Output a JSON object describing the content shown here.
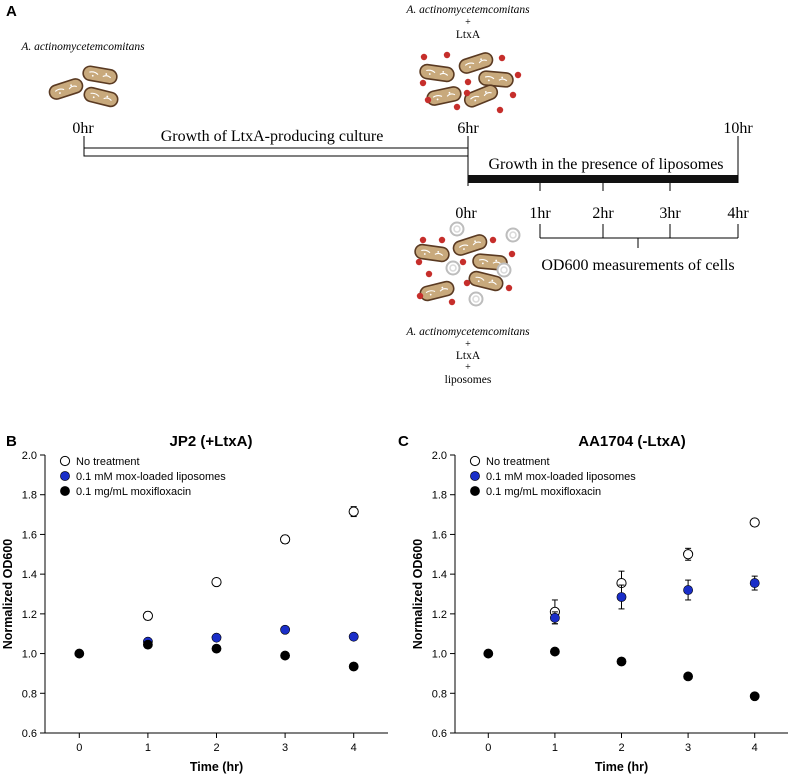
{
  "panel_a": {
    "letter": "A",
    "organism": "A. actinomycetemcomitans",
    "plus": "+",
    "ltxa": "LtxA",
    "liposomes": "liposomes",
    "time_0hr": "0hr",
    "time_6hr": "6hr",
    "time_10hr": "10hr",
    "growth_culture": "Growth of LtxA-producing culture",
    "growth_liposomes": "Growth in the presence of liposomes",
    "measure_times": [
      "0hr",
      "1hr",
      "2hr",
      "3hr",
      "4hr"
    ],
    "od_label": "OD600 measurements of cells"
  },
  "chart_data": [
    {
      "type": "scatter",
      "panel_letter": "B",
      "title": "JP2 (+LtxA)",
      "xlabel": "Time (hr)",
      "ylabel": "Normalized OD600",
      "xlim": [
        -0.5,
        4.5
      ],
      "ylim": [
        0.6,
        2.0
      ],
      "xticks": [
        0,
        1,
        2,
        3,
        4
      ],
      "yticks": [
        0.6,
        0.8,
        1.0,
        1.2,
        1.4,
        1.6,
        1.8,
        2.0
      ],
      "legend_position": "top-left",
      "series": [
        {
          "name": "No treatment",
          "style": "open",
          "color": "#ffffff",
          "x": [
            1,
            2,
            3,
            4
          ],
          "values": [
            1.19,
            1.36,
            1.575,
            1.715
          ],
          "err": [
            0.02,
            0.015,
            0.02,
            0.025
          ]
        },
        {
          "name": "0.1 mM mox-loaded liposomes",
          "style": "filled",
          "color": "#1a2ec8",
          "x": [
            1,
            2,
            3,
            4
          ],
          "values": [
            1.06,
            1.08,
            1.12,
            1.085
          ],
          "err": [
            0,
            0,
            0,
            0
          ]
        },
        {
          "name": "0.1 mg/mL moxifloxacin",
          "style": "filled",
          "color": "#000000",
          "x": [
            0,
            1,
            2,
            3,
            4
          ],
          "values": [
            1.0,
            1.045,
            1.025,
            0.99,
            0.935
          ],
          "err": [
            0,
            0,
            0,
            0,
            0
          ]
        }
      ]
    },
    {
      "type": "scatter",
      "panel_letter": "C",
      "title": "AA1704 (-LtxA)",
      "xlabel": "Time (hr)",
      "ylabel": "Normalized OD600",
      "xlim": [
        -0.5,
        4.5
      ],
      "ylim": [
        0.6,
        2.0
      ],
      "xticks": [
        0,
        1,
        2,
        3,
        4
      ],
      "yticks": [
        0.6,
        0.8,
        1.0,
        1.2,
        1.4,
        1.6,
        1.8,
        2.0
      ],
      "legend_position": "top-left",
      "series": [
        {
          "name": "No treatment",
          "style": "open",
          "color": "#ffffff",
          "x": [
            1,
            2,
            3,
            4
          ],
          "values": [
            1.21,
            1.355,
            1.5,
            1.66
          ],
          "err": [
            0.06,
            0.06,
            0.03,
            0.015
          ]
        },
        {
          "name": "0.1 mM mox-loaded liposomes",
          "style": "filled",
          "color": "#1a2ec8",
          "x": [
            1,
            2,
            3,
            4
          ],
          "values": [
            1.18,
            1.285,
            1.32,
            1.355
          ],
          "err": [
            0.03,
            0.06,
            0.05,
            0.035
          ]
        },
        {
          "name": "0.1 mg/mL moxifloxacin",
          "style": "filled",
          "color": "#000000",
          "x": [
            0,
            1,
            2,
            3,
            4
          ],
          "values": [
            1.0,
            1.01,
            0.96,
            0.885,
            0.785
          ],
          "err": [
            0,
            0,
            0,
            0,
            0
          ]
        }
      ]
    }
  ]
}
